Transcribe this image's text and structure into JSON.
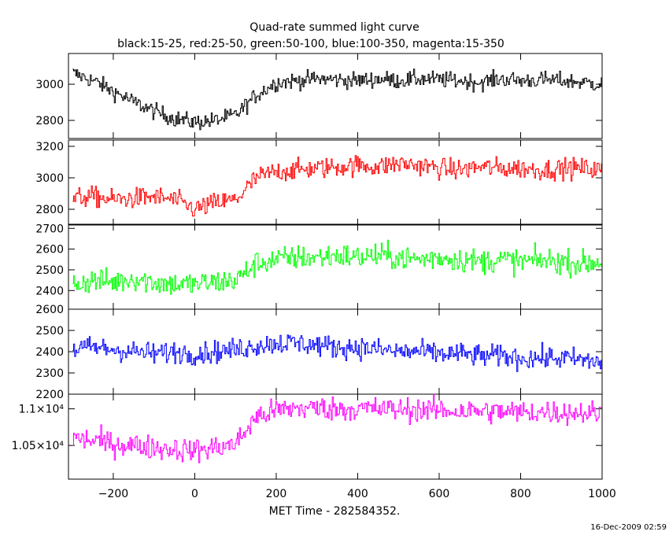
{
  "header": {
    "title": "Quad-rate summed light curve",
    "subtitle": "black:15-25, red:25-50, green:50-100, blue:100-350, magenta:15-350"
  },
  "footer": {
    "xlabel": "MET Time - 282584352.",
    "timestamp": "16-Dec-2009 02:59"
  },
  "chart_data": [
    {
      "type": "line",
      "band": "15-25",
      "color": "#000000",
      "xlim": [
        -310,
        1000
      ],
      "ylim": [
        2700,
        3170
      ],
      "yticks": [
        2800,
        3000
      ],
      "ytick_labels": [
        "2800",
        "3000"
      ],
      "x": [
        -300,
        -250,
        -200,
        -150,
        -100,
        -50,
        0,
        50,
        100,
        150,
        200,
        250,
        300,
        350,
        400,
        450,
        500,
        550,
        600,
        650,
        700,
        750,
        800,
        850,
        900,
        950,
        1000
      ],
      "y": [
        3060,
        3020,
        2960,
        2900,
        2850,
        2810,
        2790,
        2800,
        2830,
        2940,
        3010,
        3020,
        3030,
        3025,
        3020,
        3030,
        3020,
        3030,
        3025,
        3020,
        3010,
        3030,
        3020,
        3025,
        3020,
        3010,
        3000
      ]
    },
    {
      "type": "line",
      "band": "25-50",
      "color": "#ff0000",
      "xlim": [
        -310,
        1000
      ],
      "ylim": [
        2700,
        3240
      ],
      "yticks": [
        2800,
        3000,
        3200
      ],
      "ytick_labels": [
        "2800",
        "3000",
        "3200"
      ],
      "x": [
        -300,
        -250,
        -200,
        -150,
        -100,
        -50,
        0,
        50,
        100,
        150,
        200,
        250,
        300,
        350,
        400,
        450,
        500,
        550,
        600,
        650,
        700,
        750,
        800,
        850,
        900,
        950,
        1000
      ],
      "y": [
        2870,
        2880,
        2860,
        2870,
        2880,
        2860,
        2800,
        2840,
        2860,
        3000,
        3040,
        3050,
        3060,
        3070,
        3080,
        3070,
        3090,
        3080,
        3060,
        3050,
        3070,
        3060,
        3060,
        3050,
        3060,
        3060,
        3050
      ]
    },
    {
      "type": "line",
      "band": "50-100",
      "color": "#00ff00",
      "xlim": [
        -310,
        1000
      ],
      "ylim": [
        2310,
        2720
      ],
      "yticks": [
        2400,
        2500,
        2600,
        2700
      ],
      "ytick_labels": [
        "2400",
        "2500",
        "2600",
        "2700"
      ],
      "x": [
        -300,
        -250,
        -200,
        -150,
        -100,
        -50,
        0,
        50,
        100,
        150,
        200,
        250,
        300,
        350,
        400,
        450,
        500,
        550,
        600,
        650,
        700,
        750,
        800,
        850,
        900,
        950,
        1000
      ],
      "y": [
        2430,
        2450,
        2440,
        2460,
        2440,
        2430,
        2430,
        2440,
        2450,
        2530,
        2550,
        2560,
        2560,
        2570,
        2560,
        2570,
        2560,
        2550,
        2560,
        2550,
        2540,
        2550,
        2540,
        2545,
        2540,
        2530,
        2540
      ]
    },
    {
      "type": "line",
      "band": "100-350",
      "color": "#0000ff",
      "xlim": [
        -310,
        1000
      ],
      "ylim": [
        2200,
        2600
      ],
      "yticks": [
        2200,
        2300,
        2400,
        2500,
        2600
      ],
      "ytick_labels": [
        "2200",
        "2300",
        "2400",
        "2500",
        "2600"
      ],
      "x": [
        -300,
        -250,
        -200,
        -150,
        -100,
        -50,
        0,
        50,
        100,
        150,
        200,
        250,
        300,
        350,
        400,
        450,
        500,
        550,
        600,
        650,
        700,
        750,
        800,
        850,
        900,
        950,
        1000
      ],
      "y": [
        2410,
        2420,
        2410,
        2400,
        2390,
        2400,
        2390,
        2400,
        2410,
        2430,
        2440,
        2440,
        2430,
        2420,
        2420,
        2410,
        2400,
        2400,
        2390,
        2390,
        2380,
        2380,
        2370,
        2370,
        2370,
        2360,
        2350
      ]
    },
    {
      "type": "line",
      "band": "15-350",
      "color": "#ff00ff",
      "xlim": [
        -310,
        1000
      ],
      "ylim": [
        10040,
        11200
      ],
      "yticks": [
        10500,
        11000
      ],
      "ytick_labels": [
        "1.05×10⁴",
        "1.1×10⁴"
      ],
      "x": [
        -300,
        -250,
        -200,
        -150,
        -100,
        -50,
        0,
        50,
        100,
        150,
        200,
        250,
        300,
        350,
        400,
        450,
        500,
        550,
        600,
        650,
        700,
        750,
        800,
        850,
        900,
        950,
        1000
      ],
      "y": [
        10600,
        10570,
        10520,
        10500,
        10470,
        10450,
        10430,
        10470,
        10520,
        10890,
        10980,
        11010,
        11010,
        11000,
        11000,
        11000,
        10990,
        10990,
        10980,
        10970,
        10970,
        10960,
        10950,
        10960,
        10950,
        10950,
        10940
      ]
    }
  ],
  "xaxis": {
    "ticks": [
      -200,
      0,
      200,
      400,
      600,
      800,
      1000
    ],
    "tick_labels": [
      "−200",
      "0",
      "200",
      "400",
      "600",
      "800",
      "1000"
    ]
  }
}
